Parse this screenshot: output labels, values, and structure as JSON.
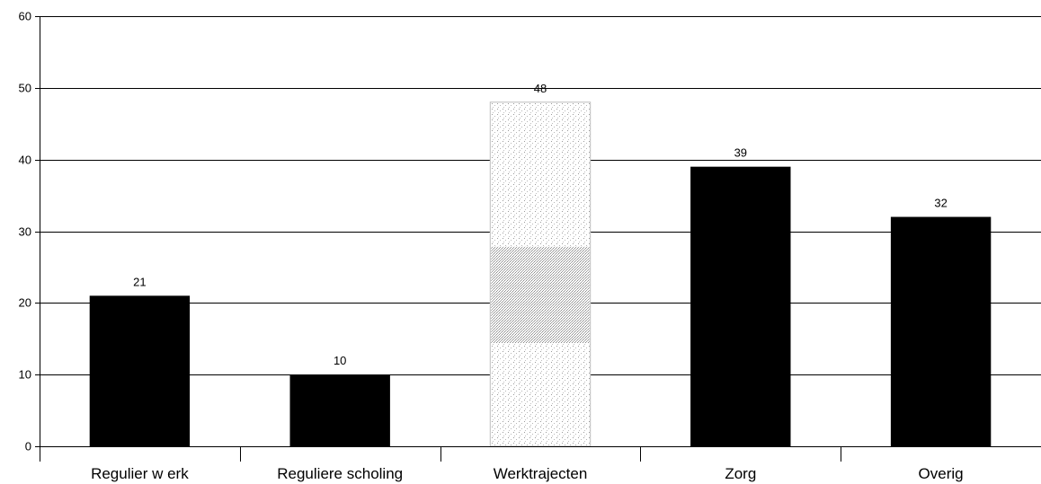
{
  "chart_data": {
    "type": "bar",
    "title": "",
    "xlabel": "",
    "ylabel": "",
    "categories": [
      "Regulier w erk",
      "Reguliere scholing",
      "Werktrajecten",
      "Zorg",
      "Overig"
    ],
    "values": [
      21,
      10,
      48,
      39,
      32
    ],
    "value_labels": [
      "21",
      "10",
      "48",
      "39",
      "32"
    ],
    "bar_fills": [
      "solid",
      "solid",
      "stippled",
      "solid",
      "solid"
    ],
    "ylim": [
      0,
      60
    ],
    "yticks": [
      0,
      10,
      20,
      30,
      40,
      50,
      60
    ],
    "ytick_labels": [
      "0",
      "10",
      "20",
      "30",
      "40",
      "50",
      "60"
    ],
    "grid": true,
    "legend": "none",
    "colors": {
      "bar": "#000000",
      "highlight_bar": "#d8d8d8",
      "grid": "#000000"
    }
  }
}
